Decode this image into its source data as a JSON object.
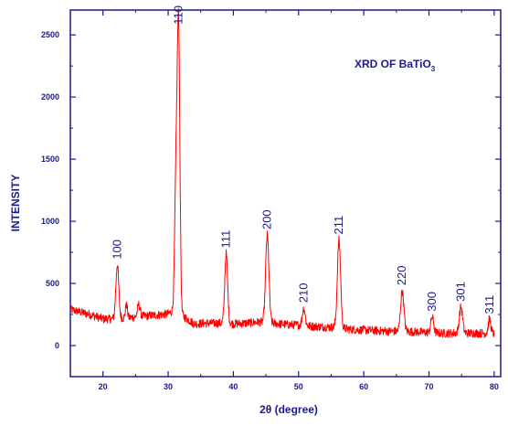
{
  "chart_data": {
    "type": "line",
    "title": "XRD OF BaTiO",
    "title_subscript": "3",
    "xlabel": "2θ (degree)",
    "ylabel": "INTENSITY",
    "xlim": [
      15,
      81
    ],
    "ylim": [
      -250,
      2700
    ],
    "x_ticks": [
      20,
      30,
      40,
      50,
      60,
      70,
      80
    ],
    "y_ticks": [
      0,
      500,
      1000,
      1500,
      2000,
      2500
    ],
    "grid": false,
    "line_color": "#ff0000",
    "axis_color": "#1a1a8c",
    "baseline": [
      [
        15,
        290
      ],
      [
        18,
        250
      ],
      [
        20,
        215
      ],
      [
        21.5,
        215
      ],
      [
        24,
        225
      ],
      [
        27,
        240
      ],
      [
        30,
        255
      ],
      [
        30.8,
        280
      ],
      [
        32.5,
        230
      ],
      [
        34,
        175
      ],
      [
        36,
        180
      ],
      [
        38,
        180
      ],
      [
        40,
        175
      ],
      [
        42,
        180
      ],
      [
        44,
        190
      ],
      [
        46,
        180
      ],
      [
        48,
        170
      ],
      [
        50,
        165
      ],
      [
        52,
        155
      ],
      [
        54,
        150
      ],
      [
        56,
        145
      ],
      [
        58,
        130
      ],
      [
        60,
        125
      ],
      [
        62,
        120
      ],
      [
        64,
        115
      ],
      [
        66,
        115
      ],
      [
        68,
        110
      ],
      [
        70,
        105
      ],
      [
        72,
        100
      ],
      [
        74,
        100
      ],
      [
        76,
        100
      ],
      [
        78,
        100
      ],
      [
        80,
        95
      ]
    ],
    "peaks": [
      {
        "x": 22.2,
        "y": 650,
        "width": 0.22,
        "label": "100"
      },
      {
        "x": 23.6,
        "y": 330,
        "width": 0.15,
        "label": ""
      },
      {
        "x": 25.5,
        "y": 330,
        "width": 0.2,
        "label": ""
      },
      {
        "x": 31.2,
        "y": 1320,
        "width": 0.2,
        "label": ""
      },
      {
        "x": 31.6,
        "y": 2540,
        "width": 0.2,
        "label": "110"
      },
      {
        "x": 38.9,
        "y": 740,
        "width": 0.22,
        "label": "111"
      },
      {
        "x": 45.2,
        "y": 890,
        "width": 0.25,
        "label": "200"
      },
      {
        "x": 50.8,
        "y": 300,
        "width": 0.22,
        "label": "210"
      },
      {
        "x": 56.2,
        "y": 850,
        "width": 0.25,
        "label": "211"
      },
      {
        "x": 65.9,
        "y": 440,
        "width": 0.25,
        "label": "220"
      },
      {
        "x": 70.5,
        "y": 230,
        "width": 0.22,
        "label": "300"
      },
      {
        "x": 74.9,
        "y": 310,
        "width": 0.25,
        "label": "301"
      },
      {
        "x": 79.3,
        "y": 210,
        "width": 0.2,
        "label": "311"
      }
    ]
  }
}
